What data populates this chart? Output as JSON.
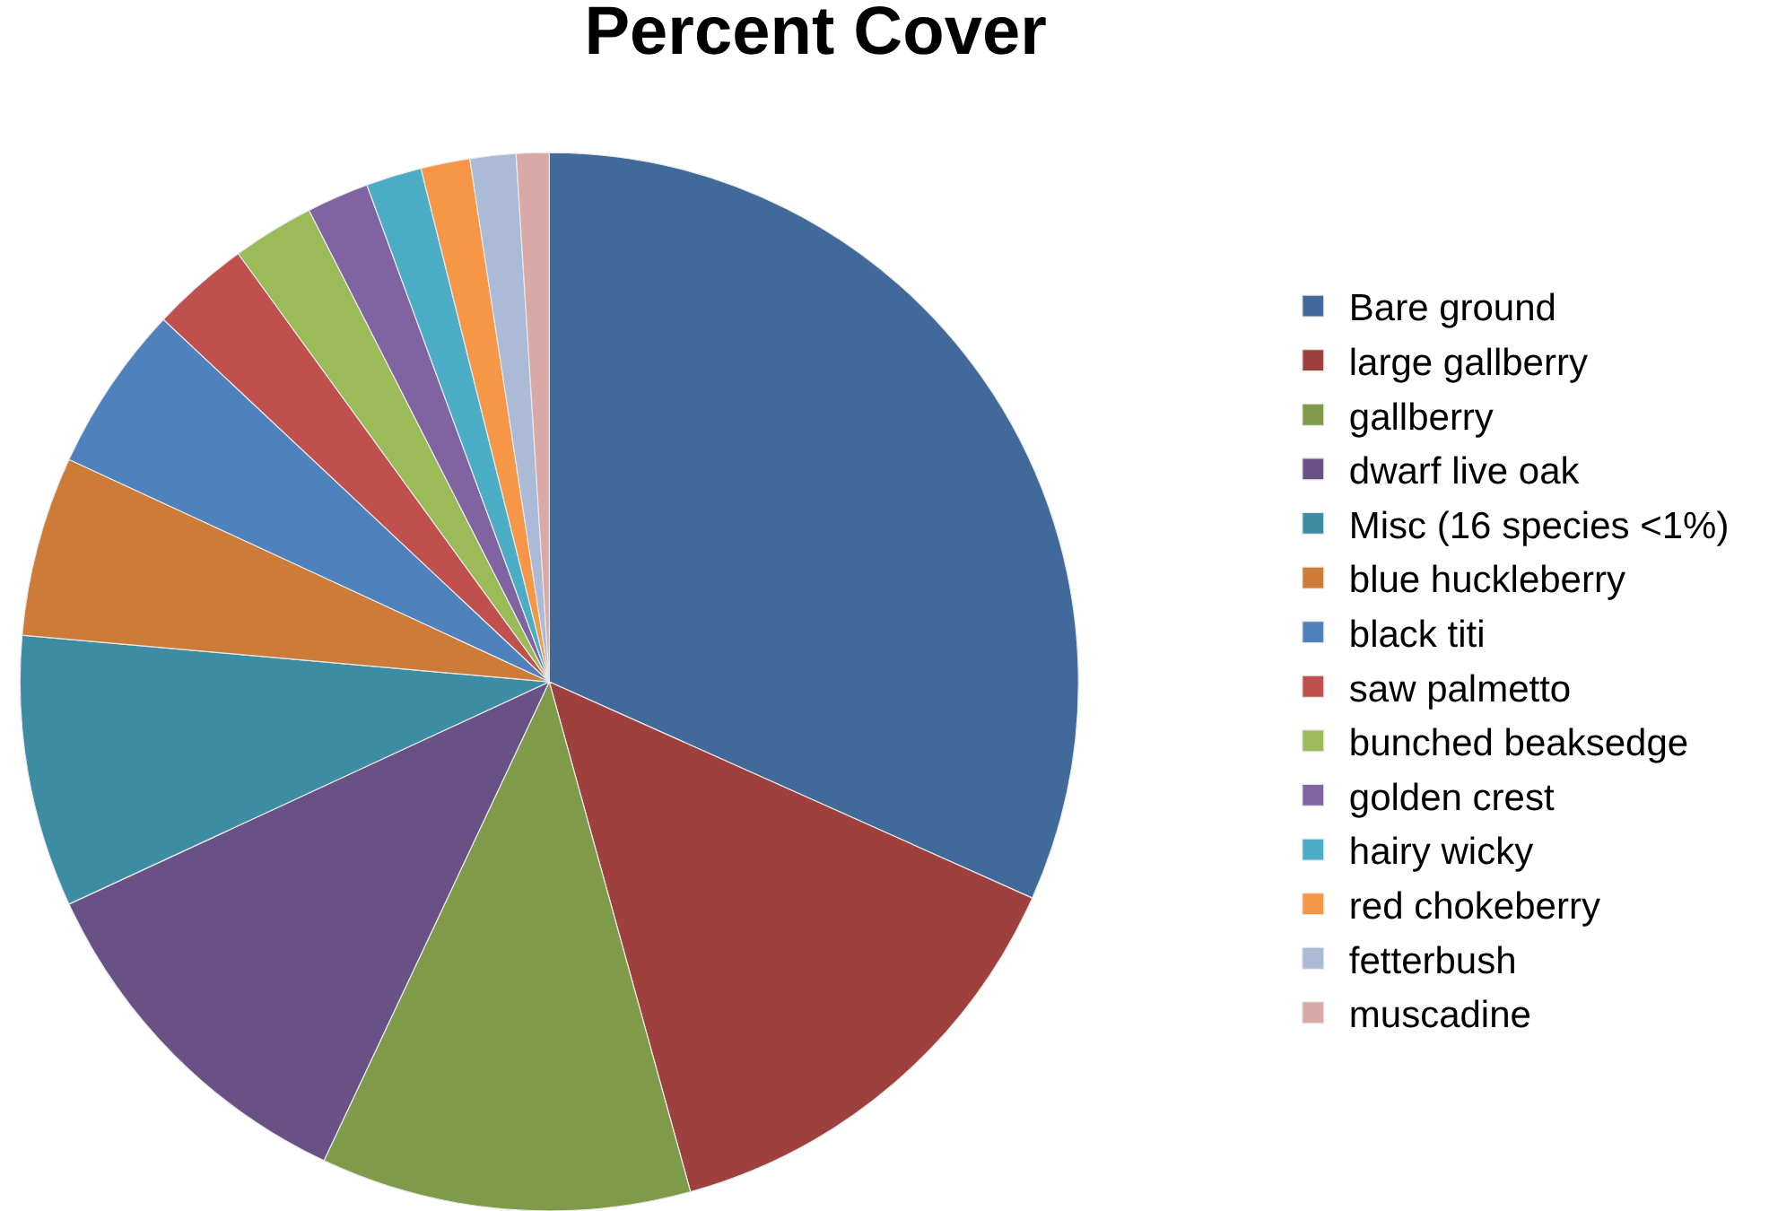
{
  "chart_data": {
    "type": "pie",
    "title": "Percent Cover",
    "categories": [
      "Bare ground",
      "large gallberry",
      "gallberry",
      "dwarf live oak",
      "Misc (16 species <1%)",
      "blue huckleberry",
      "black titi",
      "saw palmetto",
      "bunched beaksedge",
      "golden crest",
      "hairy wicky",
      "red chokeberry",
      "fetterbush",
      "muscadine"
    ],
    "values": [
      31.7,
      14.0,
      11.3,
      11.1,
      8.3,
      5.5,
      5.1,
      3.0,
      2.5,
      1.9,
      1.7,
      1.5,
      1.4,
      1.0
    ],
    "colors": [
      "#416a9b",
      "#9e413e",
      "#7f9a48",
      "#695185",
      "#3c8da3",
      "#cc7b38",
      "#4f81bd",
      "#c0504d",
      "#9bbb59",
      "#8064a2",
      "#4bacc6",
      "#f79646",
      "#aabad7",
      "#d9a9a8"
    ],
    "legend": "right"
  }
}
